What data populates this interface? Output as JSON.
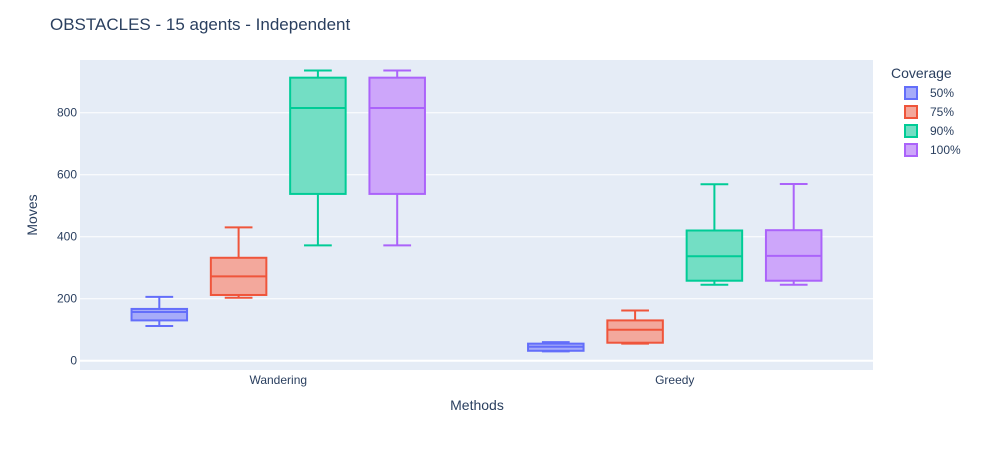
{
  "chart_data": {
    "type": "box",
    "title": "OBSTACLES - 15 agents - Independent",
    "xlabel": "Methods",
    "ylabel": "Moves",
    "categories": [
      "Wandering",
      "Greedy"
    ],
    "ylim": [
      -30,
      970
    ],
    "yticks": [
      0,
      200,
      400,
      600,
      800
    ],
    "grid": true,
    "legend": {
      "title": "Coverage",
      "placement": "top-right"
    },
    "series": [
      {
        "name": "50%",
        "color": "#636efa",
        "fill": "#a6abf9",
        "boxes": [
          {
            "min": 112,
            "q1": 130,
            "median": 157,
            "q3": 167,
            "max": 206
          },
          {
            "min": 30,
            "q1": 32,
            "median": 45,
            "q3": 55,
            "max": 60
          }
        ]
      },
      {
        "name": "75%",
        "color": "#ef553b",
        "fill": "#f3a89c",
        "boxes": [
          {
            "min": 203,
            "q1": 212,
            "median": 272,
            "q3": 332,
            "max": 430
          },
          {
            "min": 55,
            "q1": 58,
            "median": 100,
            "q3": 130,
            "max": 162
          }
        ]
      },
      {
        "name": "90%",
        "color": "#00cc96",
        "fill": "#73dec4",
        "boxes": [
          {
            "min": 372,
            "q1": 538,
            "median": 815,
            "q3": 913,
            "max": 936
          },
          {
            "min": 245,
            "q1": 258,
            "median": 337,
            "q3": 420,
            "max": 569
          }
        ]
      },
      {
        "name": "100%",
        "color": "#ab63fa",
        "fill": "#cda6fa",
        "boxes": [
          {
            "min": 372,
            "q1": 538,
            "median": 815,
            "q3": 913,
            "max": 936
          },
          {
            "min": 245,
            "q1": 258,
            "median": 338,
            "q3": 421,
            "max": 570
          }
        ]
      }
    ]
  }
}
